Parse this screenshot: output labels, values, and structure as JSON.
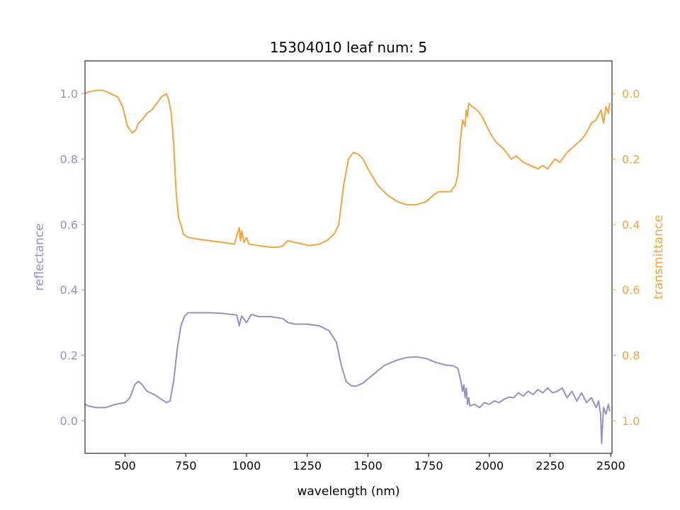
{
  "chart_data": {
    "type": "line",
    "title": "15304010 leaf num: 5",
    "xlabel": "wavelength (nm)",
    "xlim": [
      335,
      2505
    ],
    "x_ticks": [
      "500",
      "750",
      "1000",
      "1250",
      "1500",
      "1750",
      "2000",
      "2250",
      "2500"
    ],
    "x_tick_values": [
      500,
      750,
      1000,
      1250,
      1500,
      1750,
      2000,
      2250,
      2500
    ],
    "grid": false,
    "legend": "none",
    "left_axis": {
      "label": "reflectance",
      "color": "#9890c3",
      "ylim": [
        -0.1,
        1.1
      ],
      "inverted": false,
      "ticks": [
        "0.0",
        "0.2",
        "0.4",
        "0.6",
        "0.8",
        "1.0"
      ],
      "tick_values": [
        0.0,
        0.2,
        0.4,
        0.6,
        0.8,
        1.0
      ]
    },
    "right_axis": {
      "label": "transmittance",
      "color": "#efa541",
      "ylim": [
        -0.1,
        1.1
      ],
      "inverted": true,
      "ticks": [
        "0.0",
        "0.2",
        "0.4",
        "0.6",
        "0.8",
        "1.0"
      ],
      "tick_values": [
        0.0,
        0.2,
        0.4,
        0.6,
        0.8,
        1.0
      ]
    },
    "series": [
      {
        "axis": "left",
        "color": "#9890c3",
        "x": [
          335,
          350,
          380,
          420,
          460,
          500,
          520,
          540,
          555,
          570,
          590,
          620,
          650,
          670,
          685,
          700,
          715,
          730,
          745,
          760,
          800,
          850,
          900,
          960,
          970,
          980,
          1000,
          1020,
          1050,
          1100,
          1150,
          1170,
          1200,
          1250,
          1300,
          1340,
          1370,
          1390,
          1410,
          1430,
          1450,
          1480,
          1520,
          1570,
          1620,
          1660,
          1700,
          1740,
          1780,
          1820,
          1850,
          1870,
          1880,
          1890,
          1895,
          1900,
          1905,
          1910,
          1915,
          1920,
          1940,
          1960,
          1980,
          2000,
          2020,
          2040,
          2060,
          2080,
          2100,
          2120,
          2140,
          2160,
          2180,
          2200,
          2220,
          2240,
          2260,
          2280,
          2300,
          2320,
          2340,
          2360,
          2380,
          2400,
          2420,
          2440,
          2450,
          2458,
          2462,
          2470,
          2480,
          2490,
          2495
        ],
        "y": [
          0.05,
          0.045,
          0.04,
          0.04,
          0.05,
          0.055,
          0.07,
          0.11,
          0.12,
          0.11,
          0.09,
          0.08,
          0.065,
          0.055,
          0.06,
          0.12,
          0.22,
          0.29,
          0.32,
          0.33,
          0.33,
          0.33,
          0.328,
          0.323,
          0.29,
          0.32,
          0.3,
          0.325,
          0.318,
          0.318,
          0.312,
          0.3,
          0.295,
          0.295,
          0.29,
          0.275,
          0.24,
          0.17,
          0.12,
          0.107,
          0.105,
          0.115,
          0.14,
          0.17,
          0.185,
          0.193,
          0.195,
          0.19,
          0.178,
          0.17,
          0.168,
          0.16,
          0.13,
          0.09,
          0.11,
          0.07,
          0.1,
          0.05,
          0.07,
          0.045,
          0.05,
          0.04,
          0.055,
          0.05,
          0.06,
          0.055,
          0.065,
          0.072,
          0.07,
          0.085,
          0.075,
          0.09,
          0.08,
          0.095,
          0.085,
          0.1,
          0.085,
          0.09,
          0.1,
          0.07,
          0.09,
          0.06,
          0.085,
          0.055,
          0.07,
          0.04,
          0.06,
          0.02,
          -0.07,
          0.04,
          0.02,
          0.05,
          0.03
        ]
      },
      {
        "axis": "right",
        "color": "#efa541",
        "x": [
          335,
          350,
          380,
          410,
          440,
          470,
          490,
          510,
          520,
          530,
          545,
          555,
          570,
          590,
          610,
          630,
          650,
          670,
          680,
          690,
          700,
          710,
          720,
          730,
          740,
          760,
          800,
          850,
          900,
          950,
          970,
          975,
          980,
          990,
          1000,
          1010,
          1050,
          1100,
          1130,
          1150,
          1170,
          1200,
          1230,
          1260,
          1300,
          1330,
          1360,
          1380,
          1400,
          1420,
          1440,
          1460,
          1480,
          1500,
          1540,
          1580,
          1620,
          1660,
          1700,
          1740,
          1770,
          1790,
          1810,
          1840,
          1860,
          1870,
          1880,
          1890,
          1900,
          1905,
          1910,
          1915,
          1930,
          1950,
          1970,
          1990,
          2010,
          2030,
          2060,
          2090,
          2110,
          2140,
          2170,
          2200,
          2220,
          2240,
          2270,
          2290,
          2320,
          2350,
          2380,
          2400,
          2420,
          2440,
          2460,
          2470,
          2480,
          2490,
          2495
        ],
        "y": [
          0.0,
          -0.005,
          -0.01,
          -0.01,
          0.0,
          0.01,
          0.04,
          0.1,
          0.11,
          0.12,
          0.11,
          0.09,
          0.08,
          0.06,
          0.05,
          0.03,
          0.01,
          0.0,
          0.02,
          0.06,
          0.15,
          0.3,
          0.38,
          0.4,
          0.43,
          0.44,
          0.445,
          0.45,
          0.455,
          0.46,
          0.41,
          0.45,
          0.42,
          0.455,
          0.44,
          0.46,
          0.465,
          0.47,
          0.47,
          0.465,
          0.45,
          0.455,
          0.46,
          0.465,
          0.46,
          0.45,
          0.43,
          0.4,
          0.28,
          0.2,
          0.18,
          0.185,
          0.2,
          0.23,
          0.28,
          0.31,
          0.33,
          0.34,
          0.34,
          0.33,
          0.31,
          0.3,
          0.3,
          0.3,
          0.28,
          0.25,
          0.15,
          0.08,
          0.1,
          0.05,
          0.07,
          0.03,
          0.04,
          0.05,
          0.07,
          0.1,
          0.13,
          0.15,
          0.17,
          0.2,
          0.19,
          0.21,
          0.22,
          0.23,
          0.22,
          0.23,
          0.2,
          0.21,
          0.18,
          0.16,
          0.14,
          0.12,
          0.09,
          0.08,
          0.05,
          0.09,
          0.04,
          0.06,
          0.03
        ]
      }
    ]
  }
}
